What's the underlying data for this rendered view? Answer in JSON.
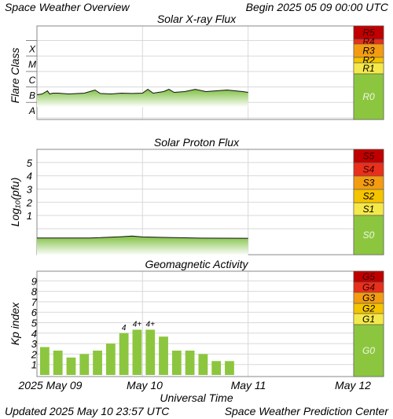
{
  "header": {
    "title": "Space Weather Overview",
    "begin": "Begin 2025 05 09 00:00 UTC"
  },
  "footer": {
    "updated": "Updated 2025 May 10 23:57 UTC",
    "center": "Space Weather Prediction Center"
  },
  "colors": {
    "green": "#8cc63f",
    "grid": "#d9d9d9",
    "scale_colors": {
      "5": "#c00000",
      "4": "#e8301b",
      "3": "#f39c12",
      "2": "#f5c400",
      "1": "#f5e84a",
      "0": "#8cc63f"
    }
  },
  "chart_data": [
    {
      "type": "area",
      "title": "Solar X-ray Flux",
      "ylabel": "Flare Class",
      "ytick_labels": [
        "X",
        "M",
        "C",
        "B",
        "A"
      ],
      "scale_labels": [
        "R5",
        "R4",
        "R3",
        "R2",
        "R1",
        "R0"
      ],
      "x_range_days": [
        0,
        3
      ],
      "series": [
        {
          "x": [
            0,
            0.05,
            0.1,
            0.12,
            0.15,
            0.2,
            0.3,
            0.45,
            0.55,
            0.6,
            0.7,
            0.8,
            0.9,
            1.0,
            1.05,
            1.1,
            1.2,
            1.25,
            1.3,
            1.4,
            1.5,
            1.6,
            1.7,
            1.8,
            1.95,
            2.0
          ],
          "y": [
            -6.5,
            -6.45,
            -6.25,
            -6.45,
            -6.4,
            -6.4,
            -6.45,
            -6.4,
            -6.2,
            -6.42,
            -6.45,
            -6.4,
            -6.42,
            -6.4,
            -6.15,
            -6.4,
            -6.3,
            -6.15,
            -6.35,
            -6.3,
            -6.15,
            -6.3,
            -6.25,
            -6.2,
            -6.3,
            -6.35
          ]
        }
      ]
    },
    {
      "type": "area",
      "title": "Solar Proton Flux",
      "ylabel": "Log₁₀(pfu)",
      "yticks": [
        1,
        2,
        3,
        4,
        5
      ],
      "scale_labels": [
        "S5",
        "S4",
        "S3",
        "S2",
        "S1",
        "S0"
      ],
      "x_range_days": [
        0,
        3
      ],
      "series": [
        {
          "x": [
            0,
            0.5,
            0.8,
            0.9,
            1.0,
            1.2,
            1.5,
            2.0
          ],
          "y": [
            -0.7,
            -0.7,
            -0.6,
            -0.55,
            -0.62,
            -0.65,
            -0.7,
            -0.72
          ]
        }
      ]
    },
    {
      "type": "bar",
      "title": "Geomagnetic Activity",
      "ylabel": "Kp index",
      "yticks": [
        1,
        2,
        3,
        4,
        5,
        6,
        7,
        8,
        9
      ],
      "ylim": [
        0,
        9
      ],
      "scale_labels": [
        "G5",
        "G4",
        "G3",
        "G2",
        "G1",
        "G0"
      ],
      "x_range_days": [
        0,
        3
      ],
      "bar_width_hours": 3,
      "values": [
        2.67,
        2.33,
        1.67,
        2.0,
        2.33,
        3.0,
        4.0,
        4.33,
        4.33,
        3.67,
        2.33,
        2.33,
        2.0,
        1.33,
        1.33
      ],
      "bar_labels": [
        "",
        "",
        "",
        "",
        "",
        "",
        "4",
        "4+",
        "4+",
        "",
        "",
        "",
        "",
        "",
        ""
      ]
    }
  ],
  "xaxis": {
    "label": "Universal Time",
    "dates": [
      "2025 May 09",
      "May 10",
      "May 11",
      "May 12"
    ]
  }
}
